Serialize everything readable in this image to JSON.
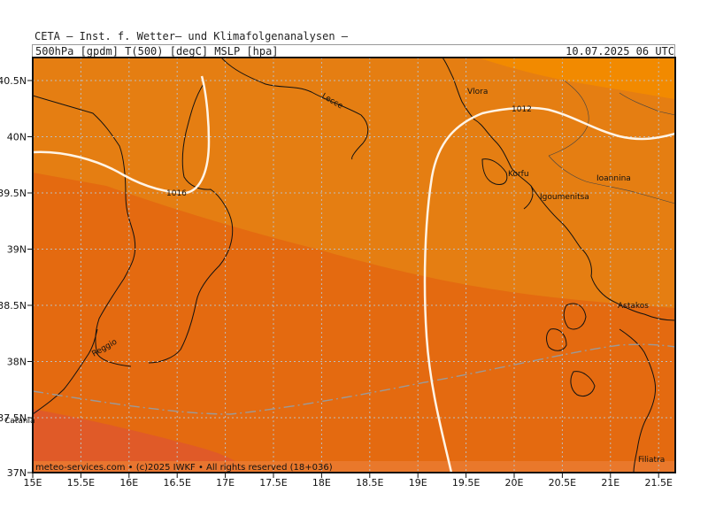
{
  "header": {
    "institute": "CETA – Inst. f. Wetter– und Klimafolgenanalysen –",
    "field": "500hPa [gpdm] T(500) [degC] MSLP [hpa]",
    "valid_time": "10.07.2025 06 UTC"
  },
  "map": {
    "lon_ticks": [
      "15E",
      "15.5E",
      "16E",
      "16.5E",
      "17E",
      "17.5E",
      "18E",
      "18.5E",
      "19E",
      "19.5E",
      "20E",
      "20.5E",
      "21E",
      "21.5E"
    ],
    "lat_ticks": [
      "40.5N",
      "40N",
      "39.5N",
      "39N",
      "38.5N",
      "38N",
      "37.5N",
      "37N"
    ],
    "places": [
      "Vlora",
      "Lecce",
      "Korfu",
      "Igoumenitsa",
      "Ioannina",
      "Astakos",
      "Reggio",
      "Filiatra",
      "Catania"
    ],
    "isobars": [
      "1016",
      "1012"
    ],
    "colors": {
      "temp_warmest": "#e05a28",
      "temp_warm": "#e46a10",
      "temp_mid": "#e57e12",
      "temp_cool": "#f28a00",
      "isobar": "#fff4e6",
      "coast": "#111111",
      "grid": "#bdbdbd",
      "geopotential": "#9a9a9a"
    },
    "credit": "meteo-services.com • (c)2025 IWKF • All rights reserved (18+036)"
  }
}
